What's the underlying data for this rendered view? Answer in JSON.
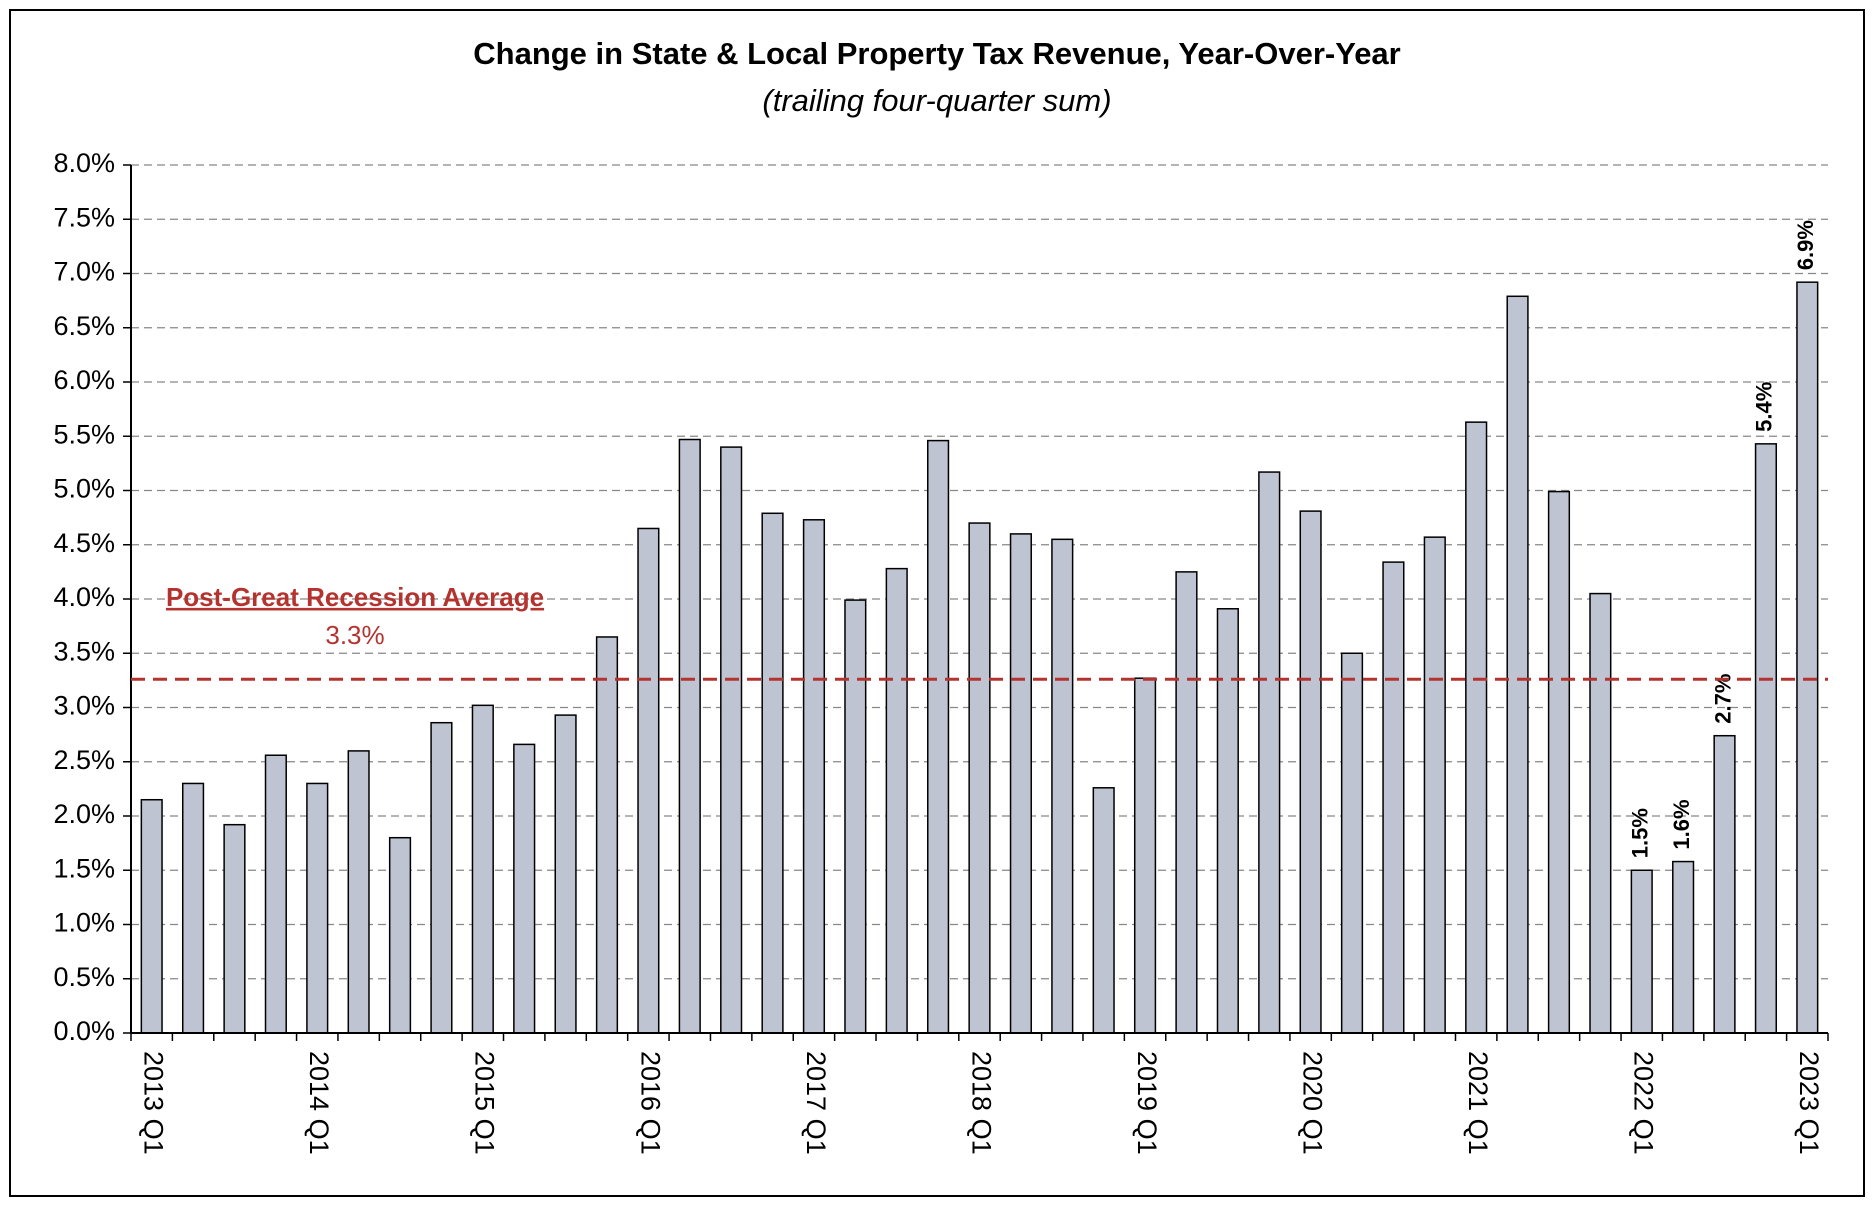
{
  "chart_data": {
    "type": "bar",
    "title": "Change in State & Local Property Tax Revenue, Year-Over-Year",
    "subtitle": "(trailing four-quarter sum)",
    "categories": [
      "2013 Q1",
      null,
      null,
      null,
      "2014 Q1",
      null,
      null,
      null,
      "2015 Q1",
      null,
      null,
      null,
      "2016 Q1",
      null,
      null,
      null,
      "2017 Q1",
      null,
      null,
      null,
      "2018 Q1",
      null,
      null,
      null,
      "2019 Q1",
      null,
      null,
      null,
      "2020 Q1",
      null,
      null,
      null,
      "2021 Q1",
      null,
      null,
      null,
      "2022 Q1",
      null,
      null,
      null,
      "2023 Q1"
    ],
    "values": [
      2.15,
      2.3,
      1.92,
      2.56,
      2.3,
      2.6,
      1.8,
      2.86,
      3.02,
      2.66,
      2.93,
      3.65,
      4.65,
      5.47,
      5.4,
      4.79,
      4.73,
      3.99,
      4.28,
      5.46,
      4.7,
      4.6,
      4.55,
      2.26,
      3.27,
      4.25,
      3.91,
      5.17,
      4.81,
      3.5,
      4.34,
      4.57,
      5.63,
      6.79,
      4.99,
      4.05,
      1.5,
      1.58,
      2.74,
      5.43,
      6.92
    ],
    "value_labels": [
      null,
      null,
      null,
      null,
      null,
      null,
      null,
      null,
      null,
      null,
      null,
      null,
      null,
      null,
      null,
      null,
      null,
      null,
      null,
      null,
      null,
      null,
      null,
      null,
      null,
      null,
      null,
      null,
      null,
      null,
      null,
      null,
      null,
      null,
      null,
      null,
      "1.5%",
      "1.6%",
      "2.7%",
      "5.4%",
      "6.9%"
    ],
    "color": "#bec4d2",
    "ylim": [
      0,
      8
    ],
    "yticks": [
      {
        "value": 0,
        "label": "0.0%"
      },
      {
        "value": 0.5,
        "label": "0.5%"
      },
      {
        "value": 1,
        "label": "1.0%"
      },
      {
        "value": 1.5,
        "label": "1.5%"
      },
      {
        "value": 2,
        "label": "2.0%"
      },
      {
        "value": 2.5,
        "label": "2.5%"
      },
      {
        "value": 3,
        "label": "3.0%"
      },
      {
        "value": 3.5,
        "label": "3.5%"
      },
      {
        "value": 4,
        "label": "4.0%"
      },
      {
        "value": 4.5,
        "label": "4.5%"
      },
      {
        "value": 5,
        "label": "5.0%"
      },
      {
        "value": 5.5,
        "label": "5.5%"
      },
      {
        "value": 6,
        "label": "6.0%"
      },
      {
        "value": 6.5,
        "label": "6.5%"
      },
      {
        "value": 7,
        "label": "7.0%"
      },
      {
        "value": 7.5,
        "label": "7.5%"
      },
      {
        "value": 8,
        "label": "8.0%"
      }
    ],
    "grid": true,
    "average_line": {
      "text": "Post-Great Recession Average",
      "value": 3.26,
      "value_label": "3.3%",
      "color": "#b5332e"
    }
  }
}
